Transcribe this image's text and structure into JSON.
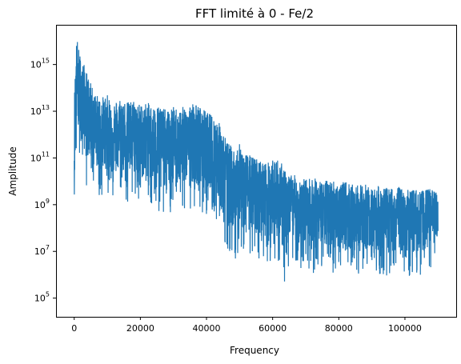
{
  "chart_data": {
    "type": "line",
    "title": "FFT limité à 0 - Fe/2",
    "xlabel": "Frequency",
    "ylabel": "Amplitude",
    "xlim": [
      -5500,
      115500
    ],
    "ylim_log10": [
      4.2,
      16.7
    ],
    "yscale": "log",
    "grid": false,
    "line_color": "#1f77b4",
    "x_ticks": [
      {
        "value": 0,
        "label": "0"
      },
      {
        "value": 20000,
        "label": "20000"
      },
      {
        "value": 40000,
        "label": "40000"
      },
      {
        "value": 60000,
        "label": "60000"
      },
      {
        "value": 80000,
        "label": "80000"
      },
      {
        "value": 100000,
        "label": "100000"
      }
    ],
    "y_ticks": [
      {
        "log10": 5,
        "base": "10",
        "exp": "5"
      },
      {
        "log10": 7,
        "base": "10",
        "exp": "7"
      },
      {
        "log10": 9,
        "base": "10",
        "exp": "9"
      },
      {
        "log10": 11,
        "base": "10",
        "exp": "11"
      },
      {
        "log10": 13,
        "base": "10",
        "exp": "13"
      },
      {
        "log10": 15,
        "base": "10",
        "exp": "15"
      }
    ],
    "series": [
      {
        "x": [
          0,
          200,
          500,
          800,
          1000,
          1500,
          2000,
          3000,
          4000,
          5000,
          6000,
          8000,
          10000,
          12000,
          14000,
          16000,
          18000,
          20000,
          22000,
          24000,
          26000,
          28000,
          30000,
          32000,
          34000,
          36000,
          38000,
          40000,
          42000,
          44000,
          46000,
          48000,
          50000,
          52000,
          55000,
          58000,
          60000,
          62000,
          64000,
          66000,
          68000,
          70000,
          72000,
          75000,
          78000,
          80000,
          82000,
          85000,
          88000,
          90000,
          92000,
          95000,
          98000,
          100000,
          102000,
          105000,
          108000,
          110000
        ],
        "upper_log10": [
          13.5,
          14.5,
          15.5,
          16.3,
          16.0,
          15.6,
          15.3,
          15.0,
          14.6,
          14.2,
          13.8,
          13.6,
          13.7,
          13.4,
          13.6,
          13.4,
          13.5,
          13.3,
          13.4,
          13.2,
          13.3,
          13.0,
          13.2,
          13.1,
          13.3,
          13.4,
          13.2,
          13.0,
          12.8,
          12.5,
          11.8,
          11.4,
          11.6,
          11.2,
          11.0,
          10.8,
          10.9,
          11.0,
          10.4,
          10.3,
          10.2,
          10.1,
          10.2,
          10.0,
          10.1,
          9.9,
          10.0,
          9.8,
          9.9,
          9.7,
          9.8,
          9.7,
          9.8,
          9.6,
          9.7,
          9.6,
          9.7,
          9.5
        ],
        "lower_log10": [
          7.6,
          9.0,
          10.5,
          11.2,
          10.8,
          10.6,
          10.4,
          10.0,
          9.7,
          9.8,
          9.5,
          9.2,
          9.4,
          9.1,
          9.3,
          9.0,
          9.2,
          8.9,
          9.0,
          8.8,
          8.7,
          8.5,
          8.6,
          8.6,
          8.8,
          8.7,
          8.5,
          8.6,
          8.5,
          7.8,
          7.2,
          6.8,
          6.5,
          6.8,
          6.5,
          6.4,
          6.6,
          6.3,
          5.5,
          6.6,
          6.2,
          6.3,
          6.0,
          6.2,
          6.1,
          6.0,
          6.1,
          5.9,
          6.0,
          6.2,
          6.0,
          5.9,
          6.1,
          5.9,
          5.9,
          6.0,
          6.2,
          7.0
        ]
      }
    ]
  }
}
